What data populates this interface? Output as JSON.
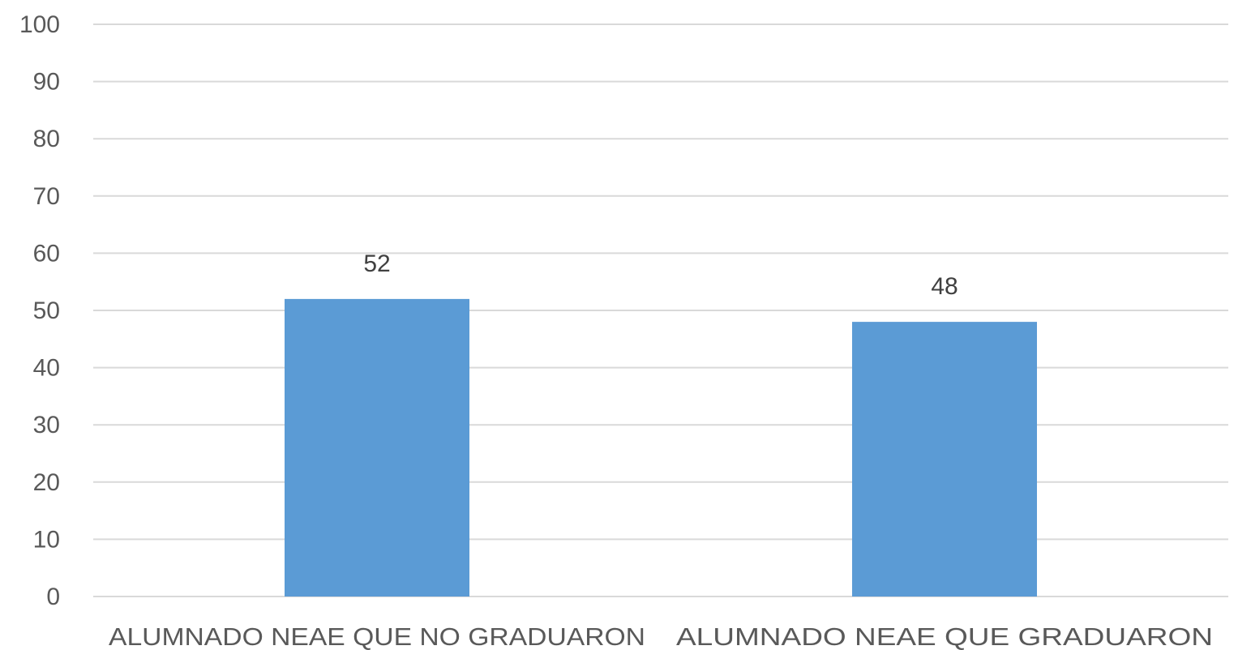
{
  "chart_data": {
    "type": "bar",
    "categories": [
      "ALUMNADO NEAE QUE NO GRADUARON",
      "ALUMNADO NEAE QUE GRADUARON"
    ],
    "values": [
      52,
      48
    ],
    "data_labels": [
      "52",
      "48"
    ],
    "y_ticks": [
      "0",
      "10",
      "20",
      "30",
      "40",
      "50",
      "60",
      "70",
      "80",
      "90",
      "100"
    ],
    "ylim": [
      0,
      100
    ],
    "grid": true,
    "legend": "none",
    "bar_color": "#5b9bd5",
    "grid_color": "#d9d9d9",
    "text_color": "#595959"
  }
}
